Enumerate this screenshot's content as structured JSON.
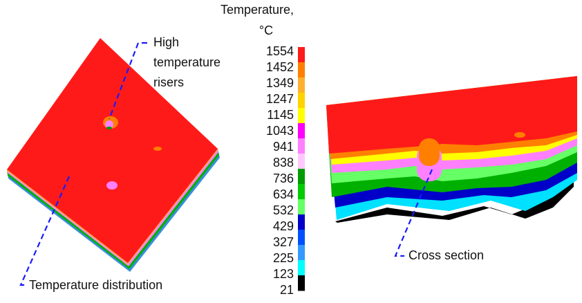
{
  "legend": {
    "title": [
      "Temperature,",
      "°C"
    ],
    "levels": [
      1554,
      1452,
      1349,
      1247,
      1145,
      1043,
      941,
      838,
      736,
      634,
      532,
      429,
      327,
      225,
      123,
      21
    ],
    "colors": [
      "#ff1a1a",
      "#ff8000",
      "#ffb030",
      "#ffd200",
      "#ffff00",
      "#ff00ff",
      "#ff80ff",
      "#ffc8ff",
      "#009c00",
      "#00cc00",
      "#66ff66",
      "#0000c8",
      "#0050ff",
      "#3399ff",
      "#00ffff",
      "#000000"
    ]
  },
  "annotations": {
    "risers": [
      "High",
      "temperature",
      "risers"
    ],
    "distribution": "Temperature distribution",
    "cross_section": "Cross section"
  }
}
